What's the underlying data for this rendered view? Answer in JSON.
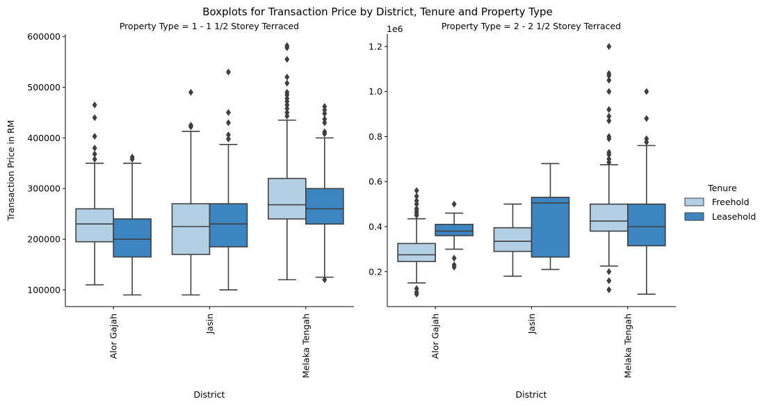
{
  "figure": {
    "suptitle": "Boxplots for Transaction Price by District, Tenure and Property Type"
  },
  "legend": {
    "title": "Tenure",
    "placement": "right",
    "items": [
      {
        "label": "Freehold",
        "color": "#b3cfe3"
      },
      {
        "label": "Leasehold",
        "color": "#3d85c0"
      }
    ]
  },
  "colors": {
    "box_edge": "#3f3f3f",
    "axis": "#000000",
    "freehold": "#b3cfe3",
    "leasehold": "#3d85c0"
  },
  "chart_data": [
    {
      "type": "box",
      "title": "Property Type = 1 - 1 1/2 Storey Terraced",
      "xlabel": "District",
      "ylabel": "Transaction Price in RM",
      "ylim": [
        67000,
        605000
      ],
      "yticks": [
        100000,
        200000,
        300000,
        400000,
        500000,
        600000
      ],
      "ytick_labels": [
        "100000",
        "200000",
        "300000",
        "400000",
        "500000",
        "600000"
      ],
      "offset_label": "",
      "categories": [
        "Alor Gajah",
        "Jasin",
        "Melaka Tengah"
      ],
      "grid": false,
      "series": [
        {
          "name": "Freehold",
          "color": "#b3cfe3",
          "boxes": [
            {
              "whisker_low": 110000,
              "q1": 195000,
              "median": 230000,
              "q3": 260000,
              "whisker_high": 350000,
              "outliers": [
                358000,
                368000,
                380000,
                403000,
                440000,
                465000
              ]
            },
            {
              "whisker_low": 90000,
              "q1": 170000,
              "median": 225000,
              "q3": 270000,
              "whisker_high": 413000,
              "outliers": [
                422000,
                425000,
                490000
              ]
            },
            {
              "whisker_low": 120000,
              "q1": 240000,
              "median": 268000,
              "q3": 320000,
              "whisker_high": 435000,
              "outliers": [
                443000,
                450000,
                458000,
                465000,
                472000,
                478000,
                485000,
                490000,
                508000,
                520000,
                555000,
                578000,
                582000
              ]
            }
          ]
        },
        {
          "name": "Leasehold",
          "color": "#3d85c0",
          "boxes": [
            {
              "whisker_low": 90000,
              "q1": 165000,
              "median": 200000,
              "q3": 240000,
              "whisker_high": 350000,
              "outliers": [
                358000,
                362000
              ]
            },
            {
              "whisker_low": 100000,
              "q1": 185000,
              "median": 230000,
              "q3": 270000,
              "whisker_high": 387000,
              "outliers": [
                398000,
                406000,
                430000,
                450000,
                530000
              ]
            },
            {
              "whisker_low": 125000,
              "q1": 230000,
              "median": 260000,
              "q3": 300000,
              "whisker_high": 400000,
              "outliers": [
                120000,
                408000,
                412000,
                430000,
                437000,
                448000,
                455000,
                462000
              ]
            }
          ]
        }
      ]
    },
    {
      "type": "box",
      "title": "Property Type = 2 - 2 1/2 Storey Terraced",
      "xlabel": "District",
      "ylabel": "",
      "ylim": [
        0.045,
        1.255
      ],
      "yticks": [
        0.2,
        0.4,
        0.6,
        0.8,
        1.0,
        1.2
      ],
      "ytick_labels": [
        "0.2",
        "0.4",
        "0.6",
        "0.8",
        "1.0",
        "1.2"
      ],
      "offset_label": "1e6",
      "categories": [
        "Alor Gajah",
        "Jasin",
        "Melaka Tengah"
      ],
      "grid": false,
      "series": [
        {
          "name": "Freehold",
          "color": "#b3cfe3",
          "boxes": [
            {
              "whisker_low": 0.15,
              "q1": 0.245,
              "median": 0.275,
              "q3": 0.325,
              "whisker_high": 0.435,
              "outliers": [
                0.1,
                0.11,
                0.125,
                0.45,
                0.46,
                0.47,
                0.48,
                0.5,
                0.515,
                0.535,
                0.56
              ]
            },
            {
              "whisker_low": 0.18,
              "q1": 0.29,
              "median": 0.335,
              "q3": 0.395,
              "whisker_high": 0.5,
              "outliers": []
            },
            {
              "whisker_low": 0.225,
              "q1": 0.38,
              "median": 0.425,
              "q3": 0.5,
              "whisker_high": 0.675,
              "outliers": [
                0.12,
                0.16,
                0.2,
                0.685,
                0.7,
                0.72,
                0.73,
                0.79,
                0.8,
                0.87,
                0.89,
                0.92,
                1.0,
                1.05,
                1.07,
                1.08,
                1.2
              ]
            }
          ]
        },
        {
          "name": "Leasehold",
          "color": "#3d85c0",
          "boxes": [
            {
              "whisker_low": 0.3,
              "q1": 0.36,
              "median": 0.38,
              "q3": 0.41,
              "whisker_high": 0.46,
              "outliers": [
                0.22,
                0.23,
                0.26,
                0.5
              ]
            },
            {
              "whisker_low": 0.21,
              "q1": 0.265,
              "median": 0.505,
              "q3": 0.53,
              "whisker_high": 0.68,
              "outliers": []
            },
            {
              "whisker_low": 0.1,
              "q1": 0.315,
              "median": 0.4,
              "q3": 0.5,
              "whisker_high": 0.76,
              "outliers": [
                0.775,
                0.79,
                0.88,
                1.0
              ]
            }
          ]
        }
      ]
    }
  ]
}
